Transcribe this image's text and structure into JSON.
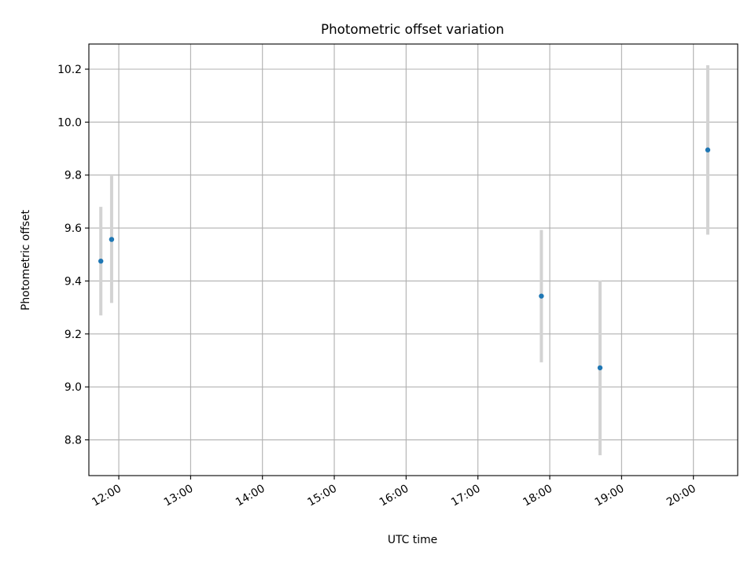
{
  "chart_data": {
    "type": "scatter",
    "title": "Photometric offset variation",
    "xlabel": "UTC time",
    "ylabel": "Photometric offset",
    "x_scale": "time",
    "xlim": [
      "11:35",
      "20:37"
    ],
    "ylim": [
      8.665,
      10.295
    ],
    "x_ticks": [
      "12:00",
      "13:00",
      "14:00",
      "15:00",
      "16:00",
      "17:00",
      "18:00",
      "19:00",
      "20:00"
    ],
    "y_ticks": [
      "8.8",
      "9.0",
      "9.2",
      "9.4",
      "9.6",
      "9.8",
      "10.0",
      "10.2"
    ],
    "grid": true,
    "legend": false,
    "series": [
      {
        "x": [
          "11:45",
          "11:54",
          "17:53",
          "18:42",
          "20:12"
        ],
        "y": [
          9.475,
          9.557,
          9.343,
          9.072,
          9.895
        ],
        "yerr": [
          0.205,
          0.24,
          0.25,
          0.33,
          0.32
        ]
      }
    ],
    "colors": {
      "marker": "#1f77b4",
      "errorbar": "#d3d3d3",
      "grid": "#b0b0b0",
      "axes": "#000000"
    }
  }
}
